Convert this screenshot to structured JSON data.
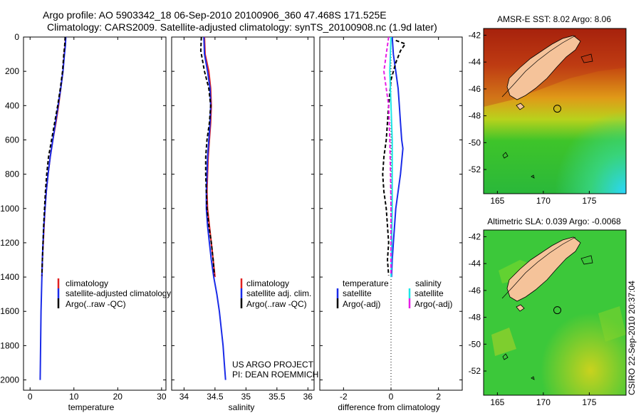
{
  "header": {
    "line1": "Argo profile: AO 5903342_18 06-Sep-2010 20100906_360 47.468S 171.525E",
    "line2": "Climatology: CARS2009. Satellite-adjusted climatology: synTS_20100908.nc (1.9d later)"
  },
  "side_label": "CSIRO 22-Sep-2010 20:37:04",
  "project": {
    "line1": "US ARGO PROJECT",
    "line2": "PI: DEAN ROEMMICH"
  },
  "colors": {
    "climatology": "#e02020",
    "satellite": "#1a2be8",
    "argo": "#000000",
    "sal_satellite": "#1ee6e6",
    "sal_argo": "#e61ee6",
    "land": "#f5c39a"
  },
  "chart_data": [
    {
      "type": "line",
      "name": "temperature profile",
      "xlabel": "temperature",
      "xlim": [
        -1.5,
        31
      ],
      "ylim": [
        2060,
        0
      ],
      "xticks": [
        0,
        10,
        20,
        30
      ],
      "yticks": [
        0,
        200,
        400,
        600,
        800,
        1000,
        1200,
        1400,
        1600,
        1800,
        2000
      ],
      "legend": [
        "climatology",
        "satellite-adjusted climatology",
        "Argo(..raw -QC)"
      ],
      "series": [
        {
          "name": "climatology",
          "key": "climatology",
          "style": "solid",
          "points": [
            [
              8.1,
              0
            ],
            [
              8.0,
              50
            ],
            [
              7.8,
              100
            ],
            [
              7.5,
              200
            ],
            [
              7.0,
              300
            ],
            [
              6.5,
              400
            ],
            [
              5.9,
              500
            ],
            [
              5.2,
              600
            ],
            [
              4.6,
              700
            ],
            [
              4.1,
              800
            ],
            [
              3.7,
              900
            ],
            [
              3.4,
              1000
            ],
            [
              3.2,
              1100
            ],
            [
              3.0,
              1200
            ],
            [
              2.8,
              1300
            ],
            [
              2.7,
              1400
            ]
          ]
        },
        {
          "name": "satellite-adjusted climatology",
          "key": "satellite",
          "style": "solid",
          "points": [
            [
              8.15,
              0
            ],
            [
              8.05,
              50
            ],
            [
              7.85,
              100
            ],
            [
              7.5,
              200
            ],
            [
              7.0,
              300
            ],
            [
              6.4,
              400
            ],
            [
              5.8,
              500
            ],
            [
              5.2,
              600
            ],
            [
              4.6,
              700
            ],
            [
              4.1,
              800
            ],
            [
              3.7,
              900
            ],
            [
              3.4,
              1000
            ],
            [
              3.15,
              1100
            ],
            [
              2.95,
              1200
            ],
            [
              2.8,
              1300
            ],
            [
              2.7,
              1400
            ],
            [
              2.6,
              1500
            ],
            [
              2.5,
              1600
            ],
            [
              2.45,
              1700
            ],
            [
              2.4,
              1800
            ],
            [
              2.35,
              1900
            ],
            [
              2.3,
              2000
            ]
          ]
        },
        {
          "name": "Argo(..raw -QC)",
          "key": "argo",
          "style": "dashed",
          "points": [
            [
              8.0,
              0
            ],
            [
              7.9,
              50
            ],
            [
              7.7,
              100
            ],
            [
              7.4,
              200
            ],
            [
              6.9,
              300
            ],
            [
              6.3,
              400
            ],
            [
              5.6,
              500
            ],
            [
              4.9,
              600
            ],
            [
              4.2,
              700
            ],
            [
              3.8,
              800
            ],
            [
              3.5,
              900
            ],
            [
              3.3,
              1000
            ],
            [
              3.1,
              1100
            ],
            [
              2.95,
              1200
            ],
            [
              2.8,
              1300
            ],
            [
              2.7,
              1390
            ]
          ]
        }
      ]
    },
    {
      "type": "line",
      "name": "salinity profile",
      "xlabel": "salinity",
      "xlim": [
        33.8,
        36.1
      ],
      "ylim": [
        2060,
        0
      ],
      "xticks": [
        34,
        34.5,
        35,
        35.5,
        36
      ],
      "legend": [
        "climatology",
        "satellite adj. clim.",
        "Argo(..raw -QC)"
      ],
      "series": [
        {
          "name": "climatology",
          "key": "climatology",
          "style": "solid",
          "points": [
            [
              34.33,
              0
            ],
            [
              34.34,
              100
            ],
            [
              34.4,
              200
            ],
            [
              34.43,
              300
            ],
            [
              34.44,
              400
            ],
            [
              34.43,
              500
            ],
            [
              34.41,
              600
            ],
            [
              34.39,
              700
            ],
            [
              34.38,
              800
            ],
            [
              34.37,
              900
            ],
            [
              34.38,
              1000
            ],
            [
              34.41,
              1100
            ],
            [
              34.44,
              1200
            ],
            [
              34.47,
              1300
            ],
            [
              34.5,
              1400
            ]
          ]
        },
        {
          "name": "satellite adj. clim.",
          "key": "satellite",
          "style": "solid",
          "points": [
            [
              34.32,
              0
            ],
            [
              34.33,
              100
            ],
            [
              34.38,
              200
            ],
            [
              34.42,
              300
            ],
            [
              34.43,
              400
            ],
            [
              34.42,
              500
            ],
            [
              34.4,
              600
            ],
            [
              34.38,
              700
            ],
            [
              34.37,
              800
            ],
            [
              34.36,
              900
            ],
            [
              34.36,
              1000
            ],
            [
              34.38,
              1100
            ],
            [
              34.41,
              1200
            ],
            [
              34.44,
              1300
            ],
            [
              34.48,
              1400
            ],
            [
              34.53,
              1500
            ],
            [
              34.57,
              1600
            ],
            [
              34.6,
              1700
            ],
            [
              34.63,
              1800
            ],
            [
              34.65,
              1900
            ],
            [
              34.67,
              2000
            ]
          ]
        },
        {
          "name": "Argo(..raw -QC)",
          "key": "argo",
          "style": "dashed",
          "points": [
            [
              34.28,
              0
            ],
            [
              34.27,
              80
            ],
            [
              34.33,
              200
            ],
            [
              34.4,
              300
            ],
            [
              34.43,
              400
            ],
            [
              34.41,
              500
            ],
            [
              34.37,
              600
            ],
            [
              34.35,
              700
            ],
            [
              34.35,
              800
            ],
            [
              34.36,
              900
            ],
            [
              34.37,
              1000
            ],
            [
              34.4,
              1100
            ],
            [
              34.44,
              1200
            ],
            [
              34.47,
              1300
            ],
            [
              34.49,
              1390
            ]
          ]
        }
      ]
    },
    {
      "type": "line",
      "name": "difference from climatology",
      "xlabel": "difference from climatology",
      "xlim": [
        -3,
        3
      ],
      "ylim": [
        2060,
        0
      ],
      "xticks": [
        -2,
        0,
        2
      ],
      "legend_titles": [
        "temperature",
        "salinity"
      ],
      "legend_left": [
        "satellite",
        "Argo(-adj)"
      ],
      "legend_right": [
        "satellite",
        "Argo(-adj)"
      ],
      "series": [
        {
          "name": "temperature satellite",
          "key": "satellite",
          "style": "solid",
          "points": [
            [
              0.05,
              0
            ],
            [
              0.1,
              100
            ],
            [
              0.2,
              200
            ],
            [
              0.3,
              300
            ],
            [
              0.35,
              400
            ],
            [
              0.4,
              500
            ],
            [
              0.45,
              600
            ],
            [
              0.5,
              650
            ],
            [
              0.4,
              800
            ],
            [
              0.3,
              900
            ],
            [
              0.2,
              1000
            ],
            [
              0.15,
              1100
            ],
            [
              0.1,
              1200
            ],
            [
              0.05,
              1300
            ],
            [
              0.02,
              1400
            ]
          ]
        },
        {
          "name": "temperature Argo(-adj)",
          "key": "argo",
          "style": "dashed",
          "points": [
            [
              0.2,
              20
            ],
            [
              0.6,
              40
            ],
            [
              0.4,
              80
            ],
            [
              0.2,
              150
            ],
            [
              0.0,
              250
            ],
            [
              -0.1,
              400
            ],
            [
              -0.2,
              600
            ],
            [
              -0.3,
              700
            ],
            [
              -0.35,
              800
            ],
            [
              -0.3,
              900
            ],
            [
              -0.2,
              1000
            ],
            [
              -0.15,
              1100
            ],
            [
              -0.1,
              1200
            ],
            [
              -0.15,
              1300
            ],
            [
              -0.1,
              1390
            ]
          ]
        },
        {
          "name": "salinity satellite",
          "key": "sal_satellite",
          "style": "solid",
          "points": [
            [
              0.0,
              0
            ],
            [
              -0.05,
              200
            ],
            [
              0.0,
              400
            ],
            [
              0.05,
              600
            ],
            [
              0.05,
              800
            ],
            [
              0.05,
              1000
            ],
            [
              0.03,
              1200
            ],
            [
              0.0,
              1400
            ]
          ]
        },
        {
          "name": "salinity Argo(-adj)",
          "key": "sal_argo",
          "style": "dashed",
          "points": [
            [
              -0.1,
              0
            ],
            [
              -0.2,
              100
            ],
            [
              -0.3,
              200
            ],
            [
              -0.2,
              300
            ],
            [
              -0.1,
              400
            ],
            [
              -0.05,
              600
            ],
            [
              -0.02,
              800
            ],
            [
              0.0,
              1000
            ],
            [
              0.0,
              1200
            ],
            [
              0.0,
              1390
            ]
          ]
        }
      ]
    },
    {
      "type": "heatmap",
      "name": "AMSR-E SST map",
      "title": "AMSR-E SST: 8.02 Argo: 8.06",
      "xlim": [
        163.5,
        179
      ],
      "ylim": [
        -53.8,
        -41.5
      ],
      "xticks": [
        165,
        170,
        175
      ],
      "yticks": [
        -42,
        -44,
        -46,
        -48,
        -50,
        -52
      ],
      "argo_location": [
        171.525,
        -47.468
      ]
    },
    {
      "type": "heatmap",
      "name": "Altimetric SLA map",
      "title": "Altimetric SLA: 0.039 Argo: -0.0068",
      "xlim": [
        163.5,
        179
      ],
      "ylim": [
        -53.8,
        -41.5
      ],
      "xticks": [
        165,
        170,
        175
      ],
      "yticks": [
        -42,
        -44,
        -46,
        -48,
        -50,
        -52
      ],
      "argo_location": [
        171.525,
        -47.468
      ]
    }
  ]
}
